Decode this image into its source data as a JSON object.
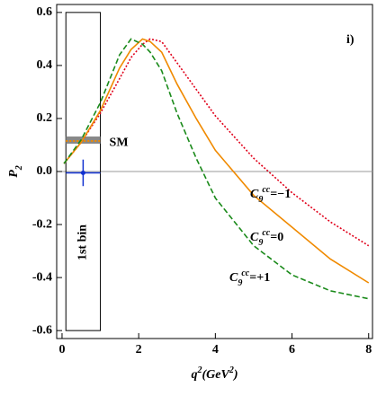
{
  "chart_data": {
    "type": "line",
    "x": [
      0.05,
      0.5,
      1,
      1.5,
      1.8,
      2.1,
      2.3,
      2.6,
      3,
      3.5,
      4,
      5,
      6,
      7,
      8
    ],
    "series": [
      {
        "label": {
          "base": "C",
          "sub": "9",
          "sup": "cc",
          "text": "=−1"
        },
        "color": "#e0001a",
        "dash": "2,2",
        "values": [
          0.03,
          0.11,
          0.22,
          0.35,
          0.43,
          0.48,
          0.5,
          0.49,
          0.41,
          0.31,
          0.21,
          0.05,
          -0.08,
          -0.19,
          -0.28
        ]
      },
      {
        "label": {
          "base": "C",
          "sub": "9",
          "sup": "cc",
          "text": "=0"
        },
        "color": "#f08a00",
        "dash": "",
        "values": [
          0.03,
          0.11,
          0.23,
          0.39,
          0.46,
          0.5,
          0.49,
          0.45,
          0.33,
          0.2,
          0.08,
          -0.09,
          -0.21,
          -0.33,
          -0.42
        ]
      },
      {
        "label": {
          "base": "C",
          "sub": "9",
          "sup": "cc",
          "text": "=+1"
        },
        "color": "#1a8a1a",
        "dash": "6,3",
        "values": [
          0.03,
          0.12,
          0.26,
          0.44,
          0.5,
          0.48,
          0.45,
          0.38,
          0.22,
          0.05,
          -0.1,
          -0.28,
          -0.39,
          -0.45,
          -0.48
        ]
      }
    ],
    "xlim": [
      -0.14,
      8.1
    ],
    "ylim": [
      -0.63,
      0.63
    ],
    "xticks": [
      0,
      2,
      4,
      6,
      8
    ],
    "yticks": [
      {
        "value": -0.6,
        "label": "-0.6"
      },
      {
        "value": -0.4,
        "label": "-0.4"
      },
      {
        "value": -0.2,
        "label": "-0.2"
      },
      {
        "value": 0,
        "label": "0.0"
      },
      {
        "value": 0.2,
        "label": "0.2"
      },
      {
        "value": 0.4,
        "label": "0.4"
      },
      {
        "value": 0.6,
        "label": "0.6"
      }
    ],
    "x_label": [
      {
        "t": "q"
      },
      {
        "t": "2",
        "sup": true
      },
      {
        "t": "(GeV"
      },
      {
        "t": "2",
        "sup": true
      },
      {
        "t": ")"
      }
    ],
    "y_label": [
      {
        "t": "P"
      },
      {
        "t": "2",
        "sub": true
      }
    ],
    "panel_label": "i)",
    "bin": {
      "label": "1st bin",
      "x": [
        0.1,
        1.0
      ],
      "y": [
        -0.6,
        0.6
      ]
    },
    "sm": {
      "label": "SM",
      "x": [
        0.1,
        1.0
      ],
      "band": [
        0.105,
        0.132
      ],
      "value": 0.115
    },
    "measurement": {
      "x": 0.55,
      "y": -0.005,
      "y_error": 0.05,
      "x_range": [
        0.1,
        1.0
      ],
      "color": "#1030d0"
    }
  }
}
